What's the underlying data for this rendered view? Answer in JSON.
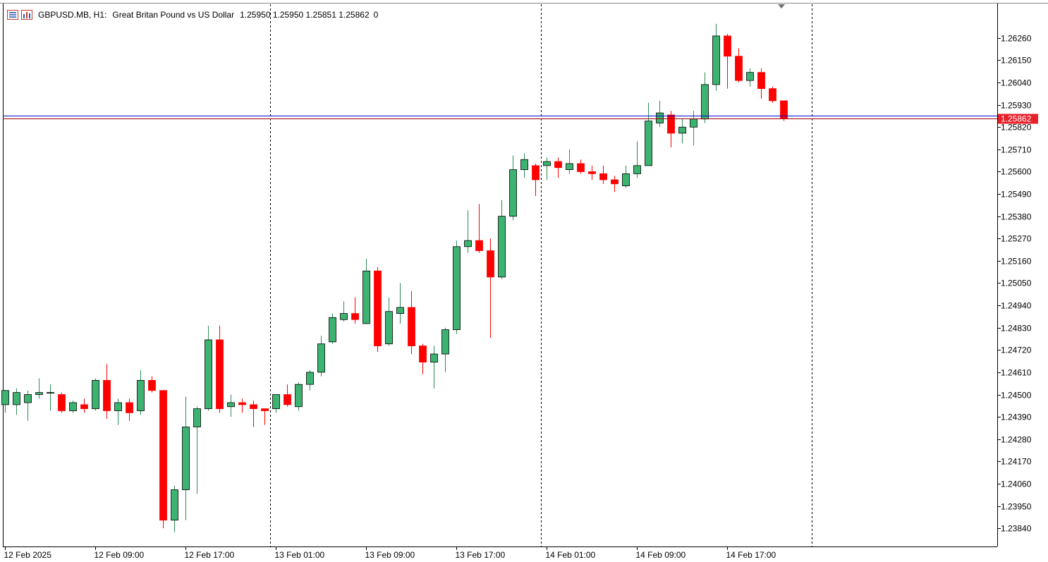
{
  "header": {
    "symbol": "GBPUSD.MB, H1:",
    "description": "Great Britan Pound vs US Dollar",
    "ohlc": "1.25950 1.25950 1.25851 1.25862",
    "extra": "0",
    "icons": [
      "chart-list-icon",
      "chart-window-icon"
    ]
  },
  "current_price_label": "1.25862",
  "colors": {
    "bull": "#3CB371",
    "bear": "#FF0000",
    "wick_bull": "#2E8B57",
    "bid_line": "#0000CD",
    "ask_line": "#A00000",
    "price_tag": "#E8202A",
    "axis": "#000000"
  },
  "chart_data": {
    "type": "candlestick",
    "title": "",
    "xlabel": "",
    "ylabel": "",
    "ylim": [
      1.2375,
      1.2643
    ],
    "grid": false,
    "y_ticks": [
      "1.26260",
      "1.26150",
      "1.26040",
      "1.25930",
      "1.25820",
      "1.25710",
      "1.25600",
      "1.25490",
      "1.25380",
      "1.25270",
      "1.25160",
      "1.25050",
      "1.24940",
      "1.24830",
      "1.24720",
      "1.24610",
      "1.24500",
      "1.24390",
      "1.24280",
      "1.24170",
      "1.24060",
      "1.23950",
      "1.23840"
    ],
    "x_ticks": [
      {
        "label": "12 Feb 2025",
        "bar": 0
      },
      {
        "label": "12 Feb 09:00",
        "bar": 8
      },
      {
        "label": "12 Feb 17:00",
        "bar": 16
      },
      {
        "label": "13 Feb 01:00",
        "bar": 24
      },
      {
        "label": "13 Feb 09:00",
        "bar": 32
      },
      {
        "label": "13 Feb 17:00",
        "bar": 40
      },
      {
        "label": "14 Feb 01:00",
        "bar": 48
      },
      {
        "label": "14 Feb 09:00",
        "bar": 56
      },
      {
        "label": "14 Feb 17:00",
        "bar": 64
      }
    ],
    "day_separators": [
      23,
      47,
      71
    ],
    "bid": 1.25862,
    "ask": 1.25875,
    "candles": [
      {
        "o": 1.2445,
        "h": 1.2452,
        "l": 1.2441,
        "c": 1.2452
      },
      {
        "o": 1.2445,
        "h": 1.2453,
        "l": 1.244,
        "c": 1.2451
      },
      {
        "o": 1.2446,
        "h": 1.2452,
        "l": 1.2437,
        "c": 1.245
      },
      {
        "o": 1.245,
        "h": 1.2458,
        "l": 1.2448,
        "c": 1.2451
      },
      {
        "o": 1.2451,
        "h": 1.2455,
        "l": 1.2442,
        "c": 1.2451
      },
      {
        "o": 1.245,
        "h": 1.2451,
        "l": 1.2441,
        "c": 1.2442
      },
      {
        "o": 1.2442,
        "h": 1.2447,
        "l": 1.2441,
        "c": 1.2446
      },
      {
        "o": 1.2445,
        "h": 1.2448,
        "l": 1.2441,
        "c": 1.2443
      },
      {
        "o": 1.2443,
        "h": 1.2458,
        "l": 1.2442,
        "c": 1.2457
      },
      {
        "o": 1.2457,
        "h": 1.2465,
        "l": 1.2438,
        "c": 1.2442
      },
      {
        "o": 1.2442,
        "h": 1.2448,
        "l": 1.2435,
        "c": 1.2446
      },
      {
        "o": 1.2446,
        "h": 1.2448,
        "l": 1.2437,
        "c": 1.2441
      },
      {
        "o": 1.2442,
        "h": 1.2462,
        "l": 1.244,
        "c": 1.2457
      },
      {
        "o": 1.2457,
        "h": 1.2459,
        "l": 1.2451,
        "c": 1.2452
      },
      {
        "o": 1.2452,
        "h": 1.2452,
        "l": 1.2384,
        "c": 1.2388
      },
      {
        "o": 1.2388,
        "h": 1.2405,
        "l": 1.2382,
        "c": 1.2403
      },
      {
        "o": 1.2403,
        "h": 1.2449,
        "l": 1.2388,
        "c": 1.2434
      },
      {
        "o": 1.2434,
        "h": 1.2444,
        "l": 1.2401,
        "c": 1.2443
      },
      {
        "o": 1.2443,
        "h": 1.2484,
        "l": 1.2442,
        "c": 1.2477
      },
      {
        "o": 1.2477,
        "h": 1.2484,
        "l": 1.2441,
        "c": 1.2443
      },
      {
        "o": 1.2444,
        "h": 1.245,
        "l": 1.2439,
        "c": 1.2446
      },
      {
        "o": 1.2446,
        "h": 1.2448,
        "l": 1.2441,
        "c": 1.2445
      },
      {
        "o": 1.2445,
        "h": 1.2447,
        "l": 1.2434,
        "c": 1.2443
      },
      {
        "o": 1.2443,
        "h": 1.2443,
        "l": 1.2435,
        "c": 1.2442
      },
      {
        "o": 1.2443,
        "h": 1.245,
        "l": 1.2441,
        "c": 1.245
      },
      {
        "o": 1.245,
        "h": 1.2455,
        "l": 1.2444,
        "c": 1.2445
      },
      {
        "o": 1.2444,
        "h": 1.2456,
        "l": 1.2442,
        "c": 1.2455
      },
      {
        "o": 1.2455,
        "h": 1.2462,
        "l": 1.2452,
        "c": 1.2461
      },
      {
        "o": 1.2461,
        "h": 1.2479,
        "l": 1.2459,
        "c": 1.2475
      },
      {
        "o": 1.2476,
        "h": 1.249,
        "l": 1.2475,
        "c": 1.2488
      },
      {
        "o": 1.2487,
        "h": 1.2496,
        "l": 1.2486,
        "c": 1.249
      },
      {
        "o": 1.249,
        "h": 1.2498,
        "l": 1.2485,
        "c": 1.2487
      },
      {
        "o": 1.2485,
        "h": 1.2517,
        "l": 1.2485,
        "c": 1.2511
      },
      {
        "o": 1.2511,
        "h": 1.2513,
        "l": 1.2471,
        "c": 1.2474
      },
      {
        "o": 1.2475,
        "h": 1.2498,
        "l": 1.2474,
        "c": 1.2491
      },
      {
        "o": 1.249,
        "h": 1.2505,
        "l": 1.2485,
        "c": 1.2493
      },
      {
        "o": 1.2493,
        "h": 1.2501,
        "l": 1.247,
        "c": 1.2474
      },
      {
        "o": 1.2474,
        "h": 1.2475,
        "l": 1.246,
        "c": 1.2466
      },
      {
        "o": 1.2466,
        "h": 1.2474,
        "l": 1.2453,
        "c": 1.247
      },
      {
        "o": 1.247,
        "h": 1.2483,
        "l": 1.2461,
        "c": 1.2482
      },
      {
        "o": 1.2482,
        "h": 1.2526,
        "l": 1.248,
        "c": 1.2523
      },
      {
        "o": 1.2523,
        "h": 1.2541,
        "l": 1.252,
        "c": 1.2526
      },
      {
        "o": 1.2526,
        "h": 1.2544,
        "l": 1.252,
        "c": 1.2521
      },
      {
        "o": 1.2521,
        "h": 1.2527,
        "l": 1.2478,
        "c": 1.2508
      },
      {
        "o": 1.2508,
        "h": 1.2546,
        "l": 1.2507,
        "c": 1.2538
      },
      {
        "o": 1.2538,
        "h": 1.2568,
        "l": 1.2536,
        "c": 1.2561
      },
      {
        "o": 1.2561,
        "h": 1.2569,
        "l": 1.2557,
        "c": 1.2566
      },
      {
        "o": 1.2563,
        "h": 1.2564,
        "l": 1.2548,
        "c": 1.2556
      },
      {
        "o": 1.2563,
        "h": 1.2567,
        "l": 1.2556,
        "c": 1.2565
      },
      {
        "o": 1.2565,
        "h": 1.2567,
        "l": 1.2557,
        "c": 1.2562
      },
      {
        "o": 1.2561,
        "h": 1.2571,
        "l": 1.2559,
        "c": 1.2564
      },
      {
        "o": 1.2564,
        "h": 1.2566,
        "l": 1.2559,
        "c": 1.256
      },
      {
        "o": 1.256,
        "h": 1.2563,
        "l": 1.2556,
        "c": 1.2559
      },
      {
        "o": 1.2559,
        "h": 1.2563,
        "l": 1.2554,
        "c": 1.2556
      },
      {
        "o": 1.2556,
        "h": 1.2558,
        "l": 1.255,
        "c": 1.2554
      },
      {
        "o": 1.2553,
        "h": 1.2563,
        "l": 1.2552,
        "c": 1.2559
      },
      {
        "o": 1.2559,
        "h": 1.2575,
        "l": 1.2557,
        "c": 1.2563
      },
      {
        "o": 1.2563,
        "h": 1.2594,
        "l": 1.2563,
        "c": 1.2585
      },
      {
        "o": 1.2584,
        "h": 1.2595,
        "l": 1.2582,
        "c": 1.2589
      },
      {
        "o": 1.2588,
        "h": 1.259,
        "l": 1.2572,
        "c": 1.2579
      },
      {
        "o": 1.2579,
        "h": 1.2586,
        "l": 1.2574,
        "c": 1.2582
      },
      {
        "o": 1.2582,
        "h": 1.259,
        "l": 1.2573,
        "c": 1.2586
      },
      {
        "o": 1.2586,
        "h": 1.2609,
        "l": 1.2584,
        "c": 1.2603
      },
      {
        "o": 1.2603,
        "h": 1.2633,
        "l": 1.26,
        "c": 1.2627
      },
      {
        "o": 1.2627,
        "h": 1.2628,
        "l": 1.2601,
        "c": 1.2617
      },
      {
        "o": 1.2617,
        "h": 1.2621,
        "l": 1.2604,
        "c": 1.2605
      },
      {
        "o": 1.2605,
        "h": 1.2611,
        "l": 1.2602,
        "c": 1.2609
      },
      {
        "o": 1.2609,
        "h": 1.2611,
        "l": 1.2596,
        "c": 1.2601
      },
      {
        "o": 1.2601,
        "h": 1.2602,
        "l": 1.2594,
        "c": 1.2595
      },
      {
        "o": 1.2595,
        "h": 1.2595,
        "l": 1.2585,
        "c": 1.25862
      }
    ]
  }
}
